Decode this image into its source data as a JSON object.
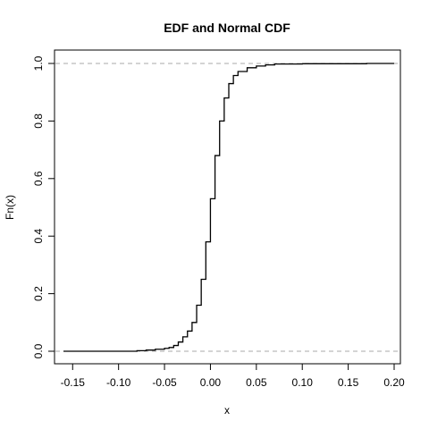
{
  "chart_data": {
    "type": "line",
    "title": "EDF and Normal CDF",
    "xlabel": "x",
    "ylabel": "Fn(x)",
    "xlim": [
      -0.16,
      0.2
    ],
    "ylim": [
      0.0,
      1.0
    ],
    "x_ticks": [
      -0.15,
      -0.1,
      -0.05,
      0.0,
      0.05,
      0.1,
      0.15,
      0.2
    ],
    "x_tick_labels": [
      "-0.15",
      "-0.10",
      "-0.05",
      "0.00",
      "0.05",
      "0.10",
      "0.15",
      "0.20"
    ],
    "y_ticks": [
      0.0,
      0.2,
      0.4,
      0.6,
      0.8,
      1.0
    ],
    "y_tick_labels": [
      "0.0",
      "0.2",
      "0.4",
      "0.6",
      "0.8",
      "1.0"
    ],
    "reference_lines": [
      0.0,
      1.0
    ],
    "grid": false,
    "series": [
      {
        "type": "step",
        "color": "#000000",
        "points": [
          [
            -0.16,
            0.0
          ],
          [
            -0.09,
            0.0
          ],
          [
            -0.08,
            0.002
          ],
          [
            -0.07,
            0.004
          ],
          [
            -0.06,
            0.007
          ],
          [
            -0.05,
            0.01
          ],
          [
            -0.045,
            0.013
          ],
          [
            -0.04,
            0.02
          ],
          [
            -0.035,
            0.032
          ],
          [
            -0.03,
            0.05
          ],
          [
            -0.025,
            0.07
          ],
          [
            -0.02,
            0.1
          ],
          [
            -0.015,
            0.16
          ],
          [
            -0.01,
            0.25
          ],
          [
            -0.005,
            0.38
          ],
          [
            0.0,
            0.53
          ],
          [
            0.005,
            0.68
          ],
          [
            0.01,
            0.8
          ],
          [
            0.015,
            0.88
          ],
          [
            0.02,
            0.93
          ],
          [
            0.025,
            0.958
          ],
          [
            0.03,
            0.972
          ],
          [
            0.04,
            0.985
          ],
          [
            0.05,
            0.991
          ],
          [
            0.06,
            0.995
          ],
          [
            0.07,
            0.998
          ],
          [
            0.1,
            0.999
          ],
          [
            0.17,
            1.0
          ],
          [
            0.2,
            1.0
          ]
        ]
      }
    ]
  }
}
